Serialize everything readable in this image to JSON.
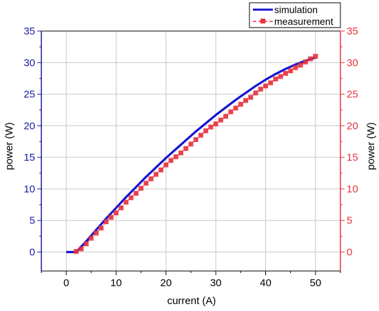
{
  "chart_data": {
    "type": "line",
    "xlabel": "current (A)",
    "ylabel_left": "power (W)",
    "ylabel_right": "power (W)",
    "xlim": [
      -5,
      55
    ],
    "ylim": [
      -3,
      35
    ],
    "x_ticks": [
      0,
      10,
      20,
      30,
      40,
      50
    ],
    "y_ticks": [
      0,
      5,
      10,
      15,
      20,
      25,
      30,
      35
    ],
    "grid": true,
    "legend_position": "top-right",
    "colors": {
      "left_axis": "#1a1aa0",
      "right_axis": "#e8323c",
      "grid": "#c8c8c8"
    },
    "series": [
      {
        "name": "simulation",
        "style": "line",
        "color": "#1414d2",
        "x": [
          0,
          1,
          2,
          4,
          6,
          8,
          10,
          12,
          14,
          16,
          18,
          20,
          22,
          24,
          26,
          28,
          30,
          32,
          34,
          36,
          38,
          40,
          42,
          44,
          46,
          48,
          50
        ],
        "y": [
          0,
          0,
          0,
          1.7,
          3.5,
          5.3,
          7.0,
          8.7,
          10.3,
          11.9,
          13.4,
          14.9,
          16.3,
          17.7,
          19.1,
          20.4,
          21.7,
          22.9,
          24.1,
          25.2,
          26.3,
          27.3,
          28.2,
          29.0,
          29.7,
          30.3,
          30.8
        ]
      },
      {
        "name": "measurement",
        "style": "dashed-square-markers",
        "color": "#e8323c",
        "x": [
          2,
          3,
          4,
          5,
          6,
          7,
          8,
          9,
          10,
          11,
          12,
          13,
          14,
          15,
          16,
          17,
          18,
          19,
          20,
          21,
          22,
          23,
          24,
          25,
          26,
          27,
          28,
          29,
          30,
          31,
          32,
          33,
          34,
          35,
          36,
          37,
          38,
          39,
          40,
          41,
          42,
          43,
          44,
          45,
          46,
          47,
          48,
          49,
          50
        ],
        "y": [
          0.1,
          0.5,
          1.3,
          2.2,
          3.0,
          3.8,
          4.8,
          5.5,
          6.2,
          7.0,
          7.9,
          8.6,
          9.3,
          10.1,
          10.9,
          11.6,
          12.3,
          13.0,
          13.8,
          14.5,
          15.1,
          15.7,
          16.4,
          17.1,
          17.8,
          18.5,
          19.2,
          19.8,
          20.3,
          20.9,
          21.5,
          22.2,
          22.8,
          23.4,
          24.0,
          24.5,
          25.2,
          25.8,
          26.3,
          26.8,
          27.4,
          27.8,
          28.3,
          28.7,
          29.2,
          29.6,
          30.1,
          30.6,
          31.0
        ]
      }
    ]
  }
}
